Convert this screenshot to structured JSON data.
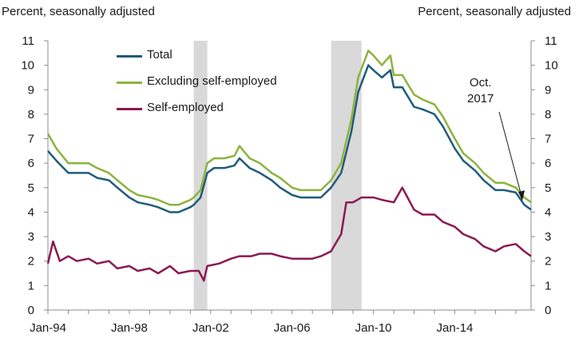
{
  "chart_data": {
    "type": "line",
    "ylabel_left": "Percent, seasonally adjusted",
    "ylabel_right": "Percent, seasonally adjusted",
    "ylim": [
      0,
      11
    ],
    "yticks": [
      0,
      1,
      2,
      3,
      4,
      5,
      6,
      7,
      8,
      9,
      10,
      11
    ],
    "xlim": [
      "1994-01",
      "2017-10"
    ],
    "xticks": [
      "Jan-94",
      "Jan-98",
      "Jan-02",
      "Jan-06",
      "Jan-10",
      "Jan-14"
    ],
    "xtick_dates": [
      "1994-01",
      "1998-01",
      "2002-01",
      "2006-01",
      "2010-01",
      "2014-01"
    ],
    "recessions": [
      {
        "start": "2001-03",
        "end": "2001-11"
      },
      {
        "start": "2007-12",
        "end": "2009-06"
      }
    ],
    "annotation": {
      "line1": "Oct.",
      "line2": "2017",
      "date": "2017-10",
      "value": 4.4
    },
    "legend_position": "top-left",
    "grid": false,
    "series": [
      {
        "name": "Total",
        "color": "#1f5c7a",
        "points": [
          [
            "1994-01",
            6.5
          ],
          [
            "1994-06",
            6.1
          ],
          [
            "1995-01",
            5.6
          ],
          [
            "1995-06",
            5.6
          ],
          [
            "1996-01",
            5.6
          ],
          [
            "1996-06",
            5.4
          ],
          [
            "1997-01",
            5.3
          ],
          [
            "1997-06",
            5.0
          ],
          [
            "1998-01",
            4.6
          ],
          [
            "1998-06",
            4.4
          ],
          [
            "1999-01",
            4.3
          ],
          [
            "1999-06",
            4.2
          ],
          [
            "2000-01",
            4.0
          ],
          [
            "2000-06",
            4.0
          ],
          [
            "2001-01",
            4.2
          ],
          [
            "2001-03",
            4.3
          ],
          [
            "2001-07",
            4.6
          ],
          [
            "2001-11",
            5.6
          ],
          [
            "2002-03",
            5.8
          ],
          [
            "2002-09",
            5.8
          ],
          [
            "2003-03",
            5.9
          ],
          [
            "2003-06",
            6.2
          ],
          [
            "2003-12",
            5.8
          ],
          [
            "2004-06",
            5.6
          ],
          [
            "2005-01",
            5.3
          ],
          [
            "2005-06",
            5.0
          ],
          [
            "2006-01",
            4.7
          ],
          [
            "2006-06",
            4.6
          ],
          [
            "2007-01",
            4.6
          ],
          [
            "2007-06",
            4.6
          ],
          [
            "2007-12",
            5.0
          ],
          [
            "2008-06",
            5.6
          ],
          [
            "2008-12",
            7.3
          ],
          [
            "2009-04",
            8.9
          ],
          [
            "2009-10",
            10.0
          ],
          [
            "2010-01",
            9.8
          ],
          [
            "2010-06",
            9.5
          ],
          [
            "2010-11",
            9.8
          ],
          [
            "2011-01",
            9.1
          ],
          [
            "2011-06",
            9.1
          ],
          [
            "2012-01",
            8.3
          ],
          [
            "2012-06",
            8.2
          ],
          [
            "2013-01",
            8.0
          ],
          [
            "2013-06",
            7.5
          ],
          [
            "2014-01",
            6.6
          ],
          [
            "2014-06",
            6.1
          ],
          [
            "2015-01",
            5.7
          ],
          [
            "2015-06",
            5.3
          ],
          [
            "2016-01",
            4.9
          ],
          [
            "2016-06",
            4.9
          ],
          [
            "2017-01",
            4.8
          ],
          [
            "2017-06",
            4.3
          ],
          [
            "2017-10",
            4.1
          ]
        ]
      },
      {
        "name": "Excluding self-employed",
        "color": "#8db33e",
        "points": [
          [
            "1994-01",
            7.2
          ],
          [
            "1994-06",
            6.6
          ],
          [
            "1995-01",
            6.0
          ],
          [
            "1995-06",
            6.0
          ],
          [
            "1996-01",
            6.0
          ],
          [
            "1996-06",
            5.8
          ],
          [
            "1997-01",
            5.6
          ],
          [
            "1997-06",
            5.3
          ],
          [
            "1998-01",
            4.9
          ],
          [
            "1998-06",
            4.7
          ],
          [
            "1999-01",
            4.6
          ],
          [
            "1999-06",
            4.5
          ],
          [
            "2000-01",
            4.3
          ],
          [
            "2000-06",
            4.3
          ],
          [
            "2001-01",
            4.5
          ],
          [
            "2001-03",
            4.6
          ],
          [
            "2001-07",
            4.9
          ],
          [
            "2001-11",
            6.0
          ],
          [
            "2002-03",
            6.2
          ],
          [
            "2002-09",
            6.2
          ],
          [
            "2003-03",
            6.3
          ],
          [
            "2003-06",
            6.7
          ],
          [
            "2003-12",
            6.2
          ],
          [
            "2004-06",
            6.0
          ],
          [
            "2005-01",
            5.6
          ],
          [
            "2005-06",
            5.4
          ],
          [
            "2006-01",
            5.0
          ],
          [
            "2006-06",
            4.9
          ],
          [
            "2007-01",
            4.9
          ],
          [
            "2007-06",
            4.9
          ],
          [
            "2007-12",
            5.3
          ],
          [
            "2008-06",
            6.0
          ],
          [
            "2008-12",
            7.8
          ],
          [
            "2009-04",
            9.5
          ],
          [
            "2009-10",
            10.6
          ],
          [
            "2010-01",
            10.4
          ],
          [
            "2010-06",
            10.0
          ],
          [
            "2010-11",
            10.4
          ],
          [
            "2011-01",
            9.6
          ],
          [
            "2011-06",
            9.6
          ],
          [
            "2012-01",
            8.8
          ],
          [
            "2012-06",
            8.6
          ],
          [
            "2013-01",
            8.4
          ],
          [
            "2013-06",
            7.9
          ],
          [
            "2014-01",
            7.0
          ],
          [
            "2014-06",
            6.4
          ],
          [
            "2015-01",
            6.0
          ],
          [
            "2015-06",
            5.6
          ],
          [
            "2016-01",
            5.2
          ],
          [
            "2016-06",
            5.2
          ],
          [
            "2017-01",
            5.0
          ],
          [
            "2017-06",
            4.6
          ],
          [
            "2017-10",
            4.4
          ]
        ]
      },
      {
        "name": "Self-employed",
        "color": "#8b1a52",
        "points": [
          [
            "1994-01",
            1.9
          ],
          [
            "1994-04",
            2.8
          ],
          [
            "1994-08",
            2.0
          ],
          [
            "1995-01",
            2.2
          ],
          [
            "1995-06",
            2.0
          ],
          [
            "1996-01",
            2.1
          ],
          [
            "1996-06",
            1.9
          ],
          [
            "1997-01",
            2.0
          ],
          [
            "1997-06",
            1.7
          ],
          [
            "1998-01",
            1.8
          ],
          [
            "1998-06",
            1.6
          ],
          [
            "1999-01",
            1.7
          ],
          [
            "1999-06",
            1.5
          ],
          [
            "2000-01",
            1.8
          ],
          [
            "2000-06",
            1.5
          ],
          [
            "2001-01",
            1.6
          ],
          [
            "2001-06",
            1.6
          ],
          [
            "2001-09",
            1.2
          ],
          [
            "2001-11",
            1.8
          ],
          [
            "2002-06",
            1.9
          ],
          [
            "2003-01",
            2.1
          ],
          [
            "2003-06",
            2.2
          ],
          [
            "2004-01",
            2.2
          ],
          [
            "2004-06",
            2.3
          ],
          [
            "2005-01",
            2.3
          ],
          [
            "2005-06",
            2.2
          ],
          [
            "2006-01",
            2.1
          ],
          [
            "2006-06",
            2.1
          ],
          [
            "2007-01",
            2.1
          ],
          [
            "2007-06",
            2.2
          ],
          [
            "2007-12",
            2.4
          ],
          [
            "2008-06",
            3.1
          ],
          [
            "2008-09",
            4.4
          ],
          [
            "2009-01",
            4.4
          ],
          [
            "2009-06",
            4.6
          ],
          [
            "2010-01",
            4.6
          ],
          [
            "2010-06",
            4.5
          ],
          [
            "2011-01",
            4.4
          ],
          [
            "2011-06",
            5.0
          ],
          [
            "2012-01",
            4.1
          ],
          [
            "2012-06",
            3.9
          ],
          [
            "2013-01",
            3.9
          ],
          [
            "2013-06",
            3.6
          ],
          [
            "2014-01",
            3.4
          ],
          [
            "2014-06",
            3.1
          ],
          [
            "2015-01",
            2.9
          ],
          [
            "2015-06",
            2.6
          ],
          [
            "2016-01",
            2.4
          ],
          [
            "2016-06",
            2.6
          ],
          [
            "2017-01",
            2.7
          ],
          [
            "2017-06",
            2.4
          ],
          [
            "2017-10",
            2.2
          ]
        ]
      }
    ]
  }
}
